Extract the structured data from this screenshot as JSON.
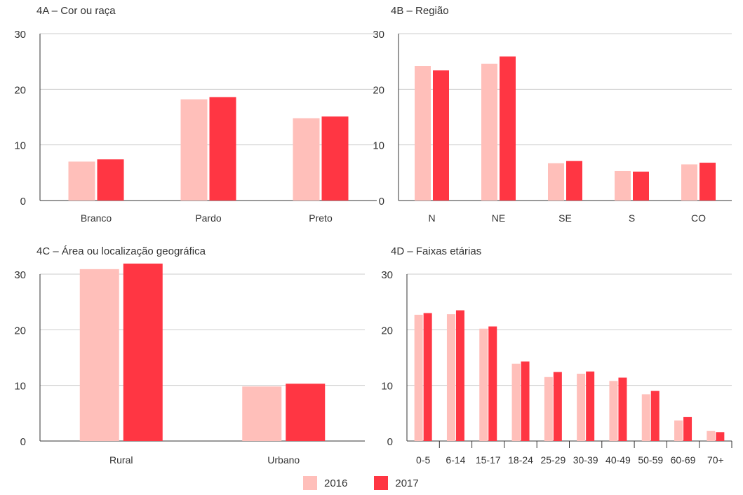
{
  "colors": {
    "2016": "#ffbfba",
    "2017": "#ff3643",
    "axis": "#333333",
    "grid": "#cccccc"
  },
  "legend": [
    {
      "label": "2016",
      "color": "#ffbfba"
    },
    {
      "label": "2017",
      "color": "#ff3643"
    }
  ],
  "chart_data": [
    {
      "type": "bar",
      "title": "4A – Cor ou raça",
      "xlabel": "",
      "ylabel": "",
      "ylim": [
        0,
        30
      ],
      "yticks": [
        0,
        10,
        20,
        30
      ],
      "grid": true,
      "categories": [
        "Branco",
        "Pardo",
        "Preto"
      ],
      "series": [
        {
          "name": "2016",
          "values": [
            7.0,
            18.2,
            14.8
          ]
        },
        {
          "name": "2017",
          "values": [
            7.4,
            18.6,
            15.1
          ]
        }
      ]
    },
    {
      "type": "bar",
      "title": "4B – Região",
      "xlabel": "",
      "ylabel": "",
      "ylim": [
        0,
        30
      ],
      "yticks": [
        0,
        10,
        20,
        30
      ],
      "grid": true,
      "categories": [
        "N",
        "NE",
        "SE",
        "S",
        "CO"
      ],
      "series": [
        {
          "name": "2016",
          "values": [
            24.2,
            24.6,
            6.7,
            5.3,
            6.5
          ]
        },
        {
          "name": "2017",
          "values": [
            23.4,
            25.9,
            7.1,
            5.2,
            6.8
          ]
        }
      ]
    },
    {
      "type": "bar",
      "title": "4C – Área ou localização geográfica",
      "xlabel": "",
      "ylabel": "",
      "ylim": [
        0,
        30
      ],
      "yticks": [
        0,
        10,
        20,
        30
      ],
      "grid": true,
      "categories": [
        "Rural",
        "Urbano"
      ],
      "series": [
        {
          "name": "2016",
          "values": [
            30.9,
            9.8
          ]
        },
        {
          "name": "2017",
          "values": [
            31.9,
            10.3
          ]
        }
      ]
    },
    {
      "type": "bar",
      "title": "4D – Faixas etárias",
      "xlabel": "",
      "ylabel": "",
      "ylim": [
        0,
        30
      ],
      "yticks": [
        0,
        10,
        20,
        30
      ],
      "grid": true,
      "categories": [
        "0-5",
        "6-14",
        "15-17",
        "18-24",
        "25-29",
        "30-39",
        "40-49",
        "50-59",
        "60-69",
        "70+"
      ],
      "series": [
        {
          "name": "2016",
          "values": [
            22.7,
            22.8,
            20.2,
            13.9,
            11.5,
            12.1,
            10.8,
            8.4,
            3.7,
            1.8
          ]
        },
        {
          "name": "2017",
          "values": [
            23.0,
            23.5,
            20.6,
            14.3,
            12.4,
            12.5,
            11.4,
            9.0,
            4.3,
            1.6
          ]
        }
      ]
    }
  ]
}
